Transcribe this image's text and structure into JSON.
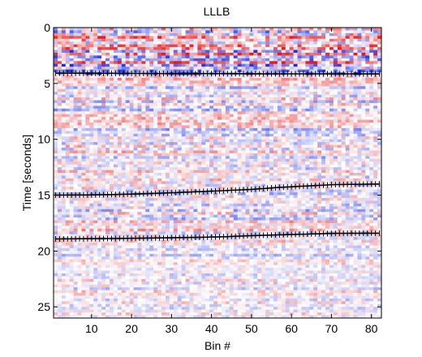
{
  "chart_data": {
    "type": "heatmap",
    "title": "LLLB",
    "xlabel": "Bin #",
    "ylabel": "Time [seconds]",
    "xlim": [
      1,
      82
    ],
    "ylim": [
      0,
      26
    ],
    "y_reversed": true,
    "xticks": [
      10,
      20,
      30,
      40,
      50,
      60,
      70,
      80
    ],
    "yticks": [
      0,
      5,
      10,
      15,
      20,
      25
    ],
    "colormap": {
      "negative": "#1a2ee6",
      "zero": "#ffffff",
      "positive": "#e61a1a"
    },
    "value_range": [
      -1,
      1
    ],
    "bins": 82,
    "time_step": 0.25,
    "event_lines": [
      {
        "times": [
          4.08,
          4.08,
          4.09,
          4.1,
          4.12,
          4.12,
          4.12,
          4.13,
          4.14,
          4.14,
          4.14,
          4.15
        ]
      },
      {
        "times": [
          15.0,
          14.98,
          14.95,
          14.88,
          14.8,
          14.7,
          14.6,
          14.48,
          14.3,
          14.18,
          14.05,
          14.0
        ]
      },
      {
        "times": [
          18.92,
          18.9,
          18.88,
          18.85,
          18.82,
          18.78,
          18.72,
          18.62,
          18.55,
          18.48,
          18.42,
          18.4
        ]
      }
    ],
    "event_line_bins": [
      1,
      8,
      15,
      22,
      29,
      36,
      43,
      50,
      57,
      64,
      71,
      82
    ]
  }
}
